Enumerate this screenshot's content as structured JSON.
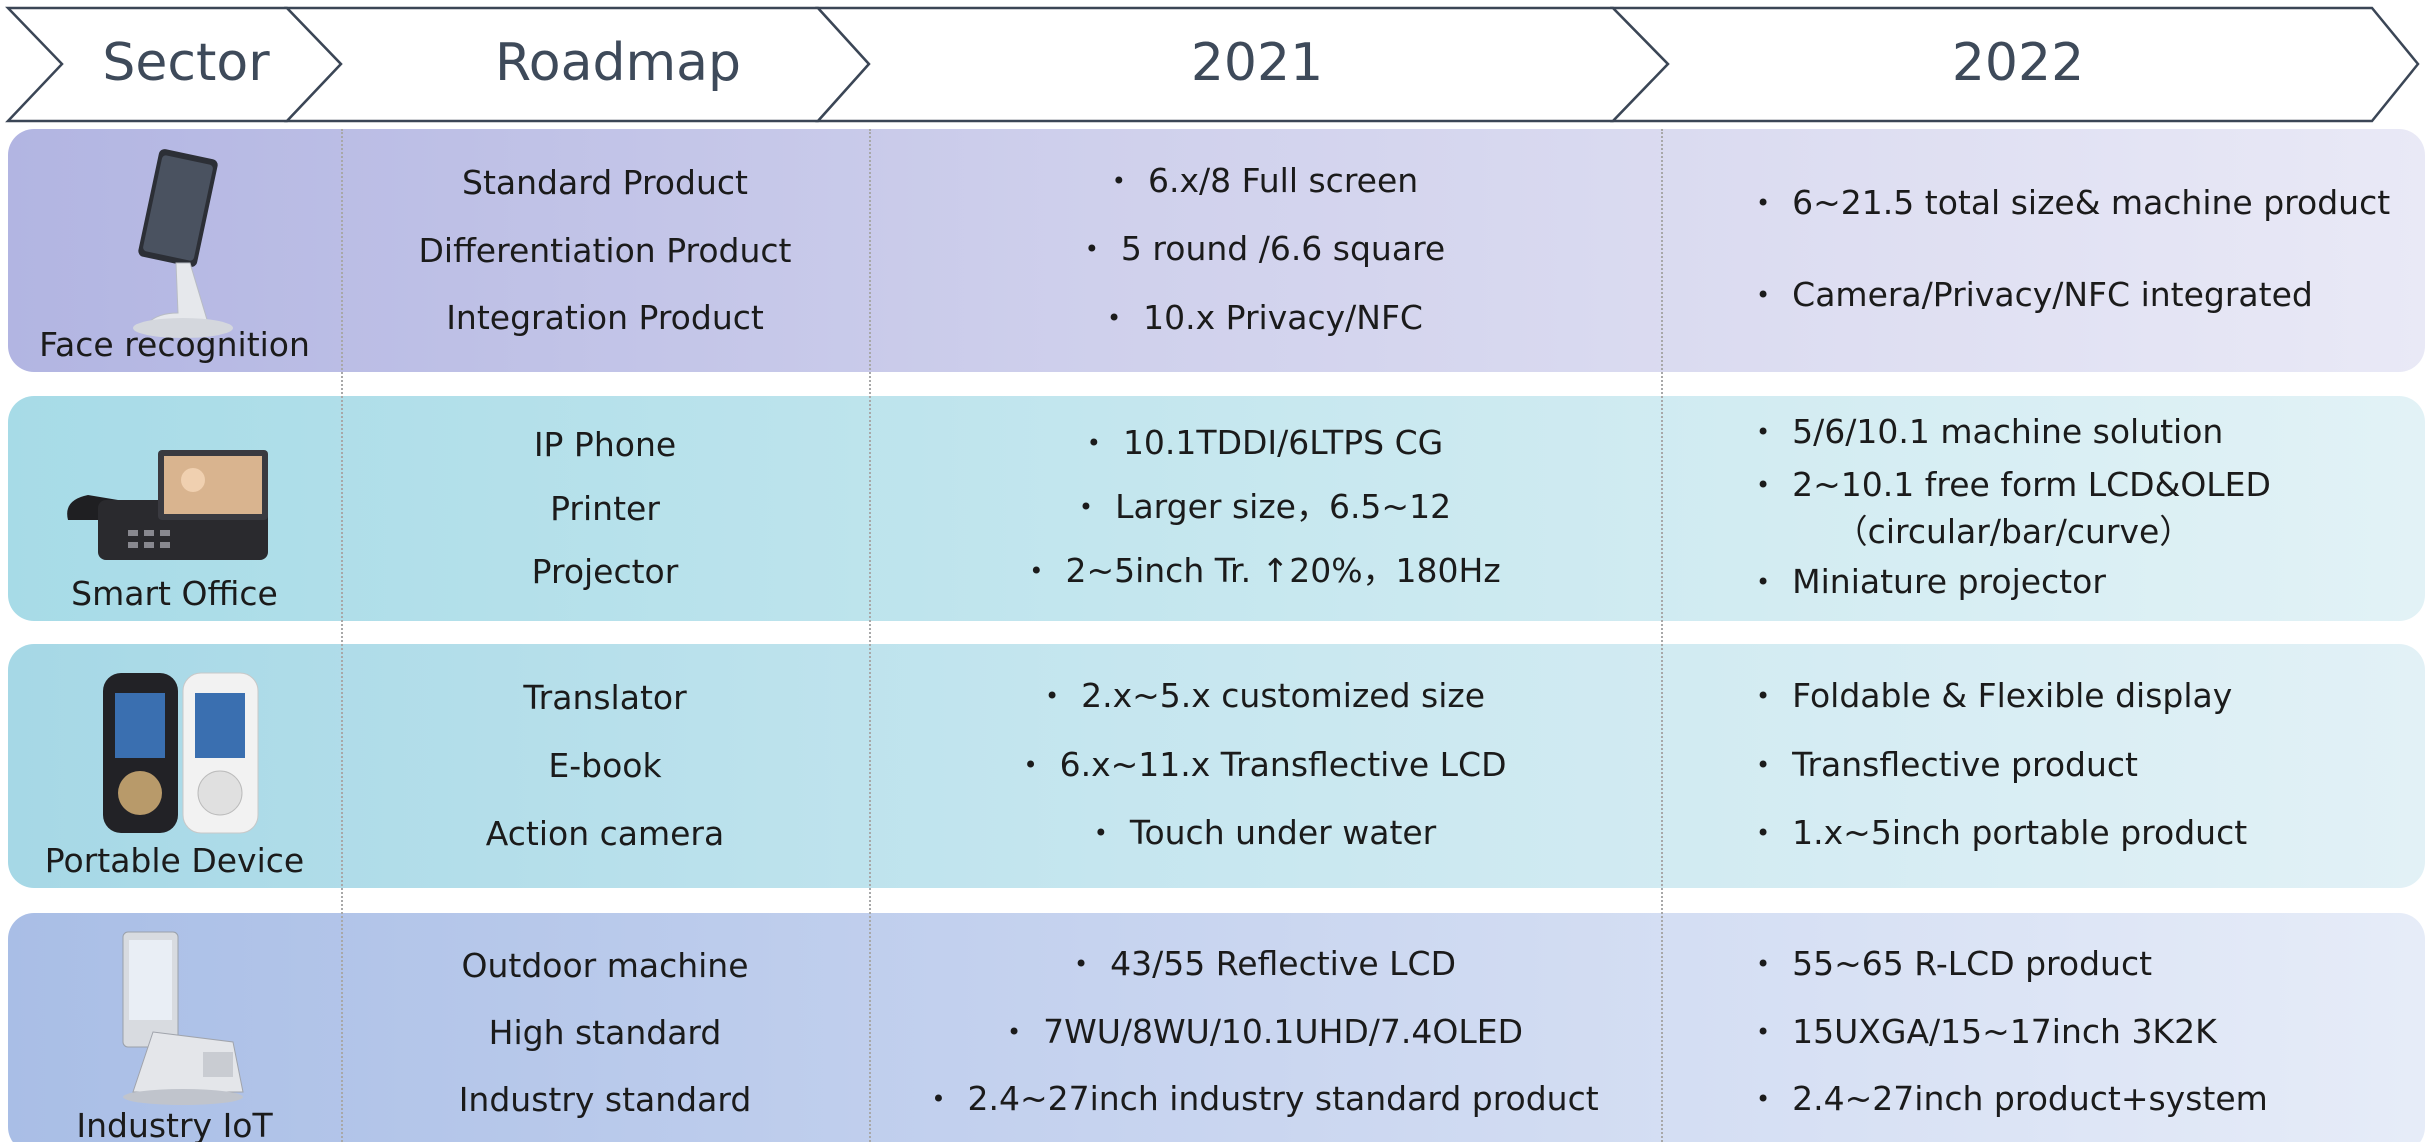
{
  "header": {
    "columns": [
      "Sector",
      "Roadmap",
      "2021",
      "2022"
    ]
  },
  "rows": [
    {
      "sector": "Face recognition",
      "roadmap": [
        "Standard Product",
        "Differentiation Product",
        "Integration Product"
      ],
      "year_2021": [
        "6.x/8 Full screen",
        "5 round /6.6 square",
        "10.x Privacy/NFC"
      ],
      "year_2022": [
        "6~21.5 total size& machine product",
        "Camera/Privacy/NFC integrated"
      ]
    },
    {
      "sector": "Smart Office",
      "roadmap": [
        "IP Phone",
        "Printer",
        "Projector"
      ],
      "year_2021": [
        "10.1TDDI/6LTPS CG",
        "Larger size，6.5~12",
        "2~5inch Tr. ↑20%，180Hz"
      ],
      "year_2022": [
        "5/6/10.1 machine solution",
        "2~10.1 free form LCD&OLED\n（circular/bar/curve）",
        "Miniature projector"
      ]
    },
    {
      "sector": "Portable Device",
      "roadmap": [
        "Translator",
        "E-book",
        "Action camera"
      ],
      "year_2021": [
        "2.x~5.x customized size",
        "6.x~11.x Transflective LCD",
        "Touch under water"
      ],
      "year_2022": [
        "Foldable & Flexible display",
        "Transflective product",
        "1.x~5inch portable product"
      ]
    },
    {
      "sector": "Industry IoT",
      "roadmap": [
        "Outdoor machine",
        "High standard",
        "Industry standard"
      ],
      "year_2021": [
        "43/55 Reflective LCD",
        "7WU/8WU/10.1UHD/7.4OLED",
        "2.4~27inch industry standard product"
      ],
      "year_2022": [
        "55~65 R-LCD product",
        "15UXGA/15~17inch 3K2K",
        "2.4~27inch product+system"
      ]
    }
  ]
}
